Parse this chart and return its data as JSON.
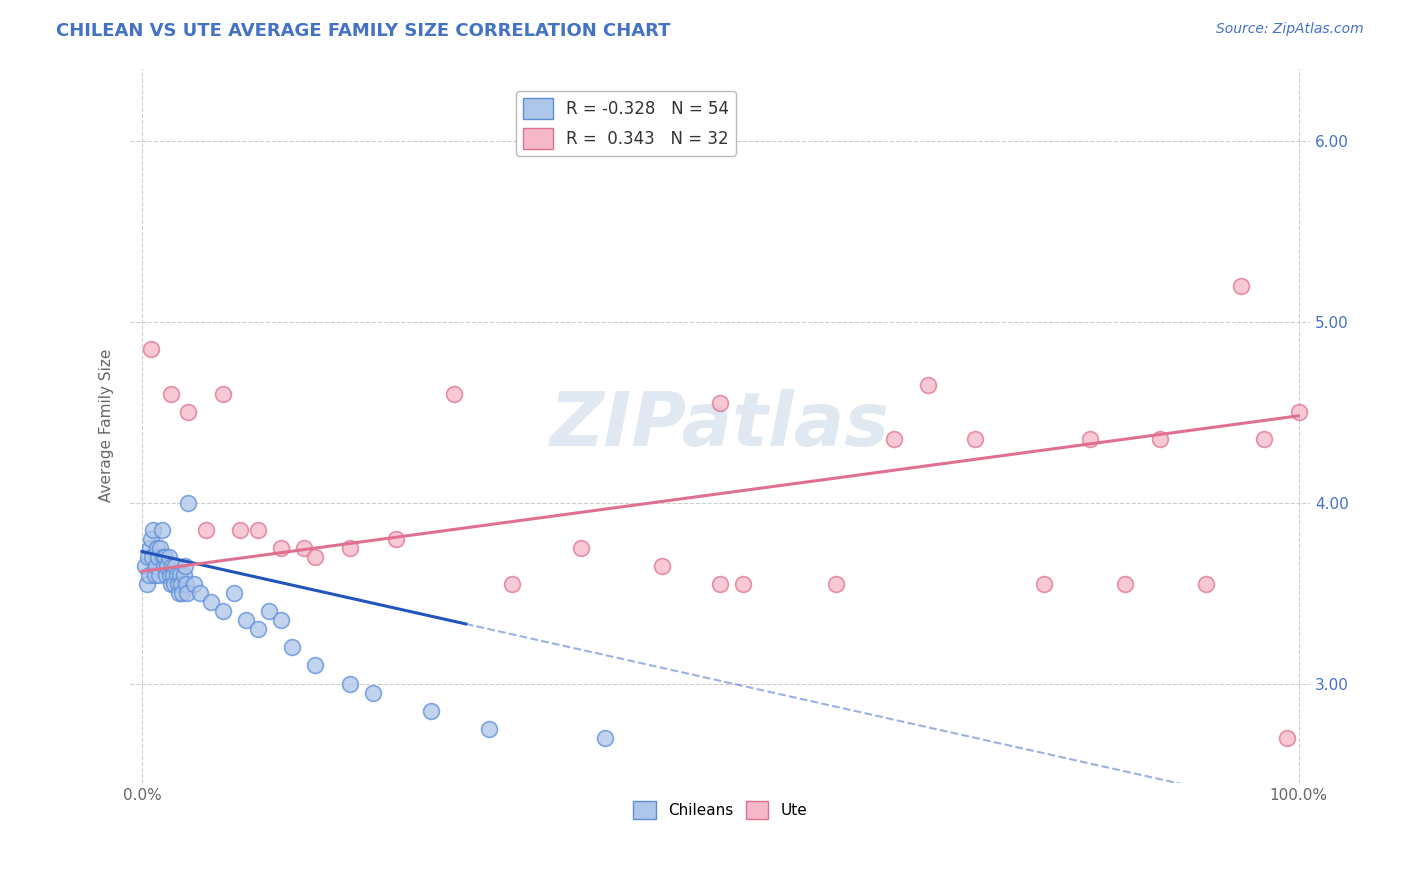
{
  "title": "CHILEAN VS UTE AVERAGE FAMILY SIZE CORRELATION CHART",
  "source_text": "Source: ZipAtlas.com",
  "ylabel": "Average Family Size",
  "xlim": [
    -1,
    101
  ],
  "ylim": [
    2.45,
    6.4
  ],
  "yticks": [
    3.0,
    4.0,
    5.0,
    6.0
  ],
  "xtick_labels": [
    "0.0%",
    "100.0%"
  ],
  "ytick_labels": [
    "3.00",
    "4.00",
    "5.00",
    "6.00"
  ],
  "legend_label_blue": "R = -0.328   N = 54",
  "legend_label_pink": "R =  0.343   N = 32",
  "chilean_x": [
    0.3,
    0.4,
    0.5,
    0.6,
    0.7,
    0.8,
    0.9,
    1.0,
    1.1,
    1.2,
    1.3,
    1.4,
    1.5,
    1.6,
    1.7,
    1.8,
    1.9,
    2.0,
    2.1,
    2.2,
    2.3,
    2.4,
    2.5,
    2.6,
    2.7,
    2.8,
    2.9,
    3.0,
    3.1,
    3.2,
    3.3,
    3.4,
    3.5,
    3.6,
    3.7,
    3.8,
    3.9,
    4.0,
    4.5,
    5.0,
    6.0,
    7.0,
    8.0,
    9.0,
    10.0,
    11.0,
    12.0,
    13.0,
    15.0,
    18.0,
    20.0,
    25.0,
    30.0,
    40.0
  ],
  "chilean_y": [
    3.65,
    3.55,
    3.7,
    3.6,
    3.75,
    3.8,
    3.7,
    3.85,
    3.6,
    3.65,
    3.75,
    3.7,
    3.6,
    3.75,
    3.85,
    3.7,
    3.65,
    3.7,
    3.6,
    3.65,
    3.7,
    3.6,
    3.55,
    3.65,
    3.6,
    3.55,
    3.65,
    3.6,
    3.55,
    3.5,
    3.6,
    3.55,
    3.5,
    3.6,
    3.65,
    3.55,
    3.5,
    4.0,
    3.55,
    3.5,
    3.45,
    3.4,
    3.5,
    3.35,
    3.3,
    3.4,
    3.35,
    3.2,
    3.1,
    3.0,
    2.95,
    2.85,
    2.75,
    2.7
  ],
  "ute_x": [
    0.8,
    2.5,
    4.0,
    5.5,
    7.0,
    8.5,
    10.0,
    12.0,
    14.0,
    15.0,
    18.0,
    22.0,
    27.0,
    32.0,
    38.0,
    45.0,
    50.0,
    52.0,
    60.0,
    65.0,
    68.0,
    72.0,
    78.0,
    82.0,
    85.0,
    88.0,
    92.0,
    95.0,
    97.0,
    99.0,
    50.0,
    100.0
  ],
  "ute_y": [
    4.85,
    4.6,
    4.5,
    3.85,
    4.6,
    3.85,
    3.85,
    3.75,
    3.75,
    3.7,
    3.75,
    3.8,
    4.6,
    3.55,
    3.75,
    3.65,
    4.55,
    3.55,
    3.55,
    4.35,
    4.65,
    4.35,
    3.55,
    4.35,
    3.55,
    4.35,
    3.55,
    5.2,
    4.35,
    2.7,
    3.55,
    4.5
  ],
  "watermark": "ZIPatlas",
  "bg_color": "#ffffff",
  "grid_color": "#cccccc",
  "chilean_dot_color": "#aec6e8",
  "chilean_edge_color": "#5b8dd9",
  "chilean_line_color": "#2255bb",
  "ute_dot_color": "#f4b8c8",
  "ute_edge_color": "#e07090",
  "ute_line_color": "#e07090",
  "title_color": "#4472c4",
  "watermark_color": "#c8d8e8",
  "source_color": "#4472c4",
  "axis_label_color": "#4472c4",
  "chilean_trend_start_x": 0,
  "chilean_trend_end_solid_x": 28,
  "chilean_trend_end_x": 100,
  "chilean_trend_start_y": 3.73,
  "chilean_trend_end_y": 2.3,
  "ute_trend_start_x": 0,
  "ute_trend_end_x": 100,
  "ute_trend_start_y": 3.62,
  "ute_trend_end_y": 4.48
}
